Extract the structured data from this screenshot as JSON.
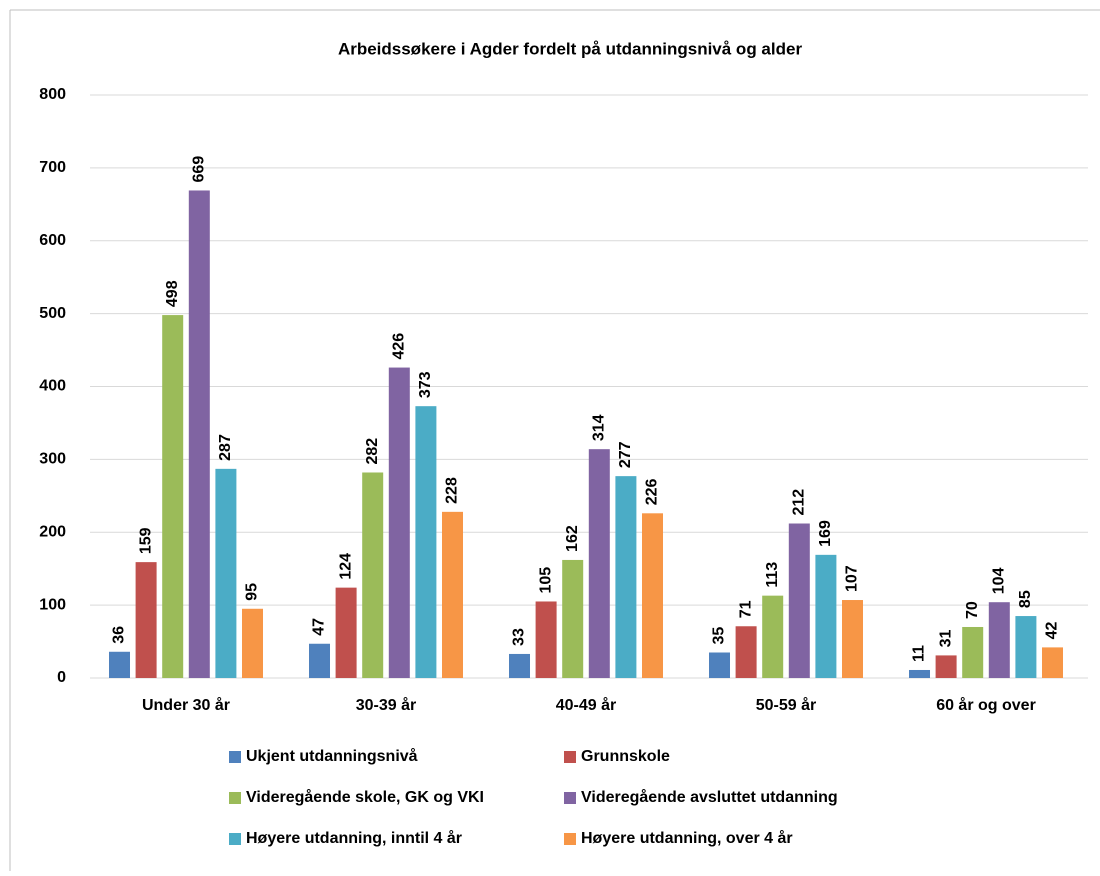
{
  "chart_data": {
    "type": "bar",
    "title": "Arbeidssøkere i Agder fordelt på utdanningsnivå og alder",
    "categories": [
      "Under 30 år",
      "30-39 år",
      "40-49 år",
      "50-59 år",
      "60 år og over"
    ],
    "series": [
      {
        "name": "Ukjent utdanningsnivå",
        "color": "#4f81bd",
        "values": [
          36,
          47,
          33,
          35,
          11
        ]
      },
      {
        "name": "Grunnskole",
        "color": "#c0504d",
        "values": [
          159,
          124,
          105,
          71,
          31
        ]
      },
      {
        "name": "Videregående skole, GK og VKI",
        "color": "#9bbb59",
        "values": [
          498,
          282,
          162,
          113,
          70
        ]
      },
      {
        "name": "Videregående avsluttet utdanning",
        "color": "#8064a2",
        "values": [
          669,
          426,
          314,
          212,
          104
        ]
      },
      {
        "name": "Høyere utdanning, inntil 4 år",
        "color": "#4bacc6",
        "values": [
          287,
          373,
          277,
          169,
          85
        ]
      },
      {
        "name": "Høyere utdanning, over 4 år",
        "color": "#f79646",
        "values": [
          95,
          228,
          226,
          107,
          42
        ]
      }
    ],
    "ylim": [
      0,
      800
    ],
    "yticks": [
      0,
      100,
      200,
      300,
      400,
      500,
      600,
      700,
      800
    ],
    "grid": true,
    "legend": "bottom"
  }
}
